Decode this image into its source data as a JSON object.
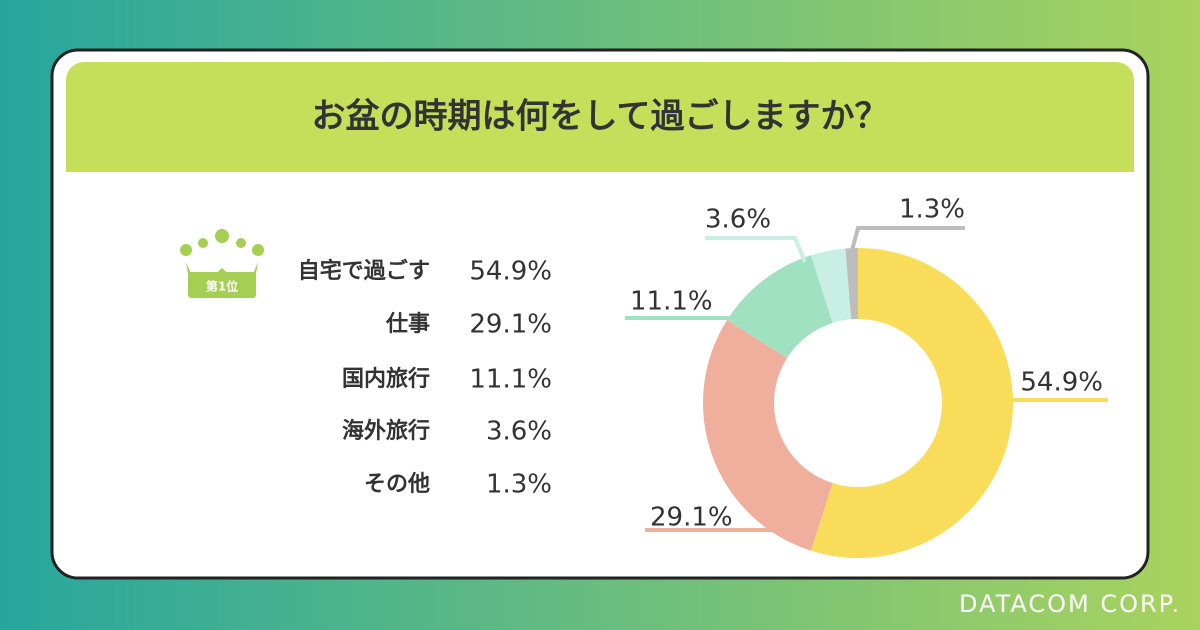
{
  "chart_data": {
    "type": "donut",
    "title": "お盆の時期は何をして過ごしますか？",
    "categories": [
      "自宅で過ごす",
      "仕事",
      "国内旅行",
      "海外旅行",
      "その他"
    ],
    "values": [
      54.9,
      29.1,
      11.1,
      3.6,
      1.3
    ],
    "value_labels": [
      "54.9%",
      "29.1%",
      "11.1%",
      "3.6%",
      "1.3%"
    ],
    "colors": [
      "#f9dd5a",
      "#f0ae9d",
      "#9fe1c1",
      "#c9efe5",
      "#bdbdbd"
    ],
    "rank_badge": "第1位"
  },
  "brand": "DATACOM CORP."
}
